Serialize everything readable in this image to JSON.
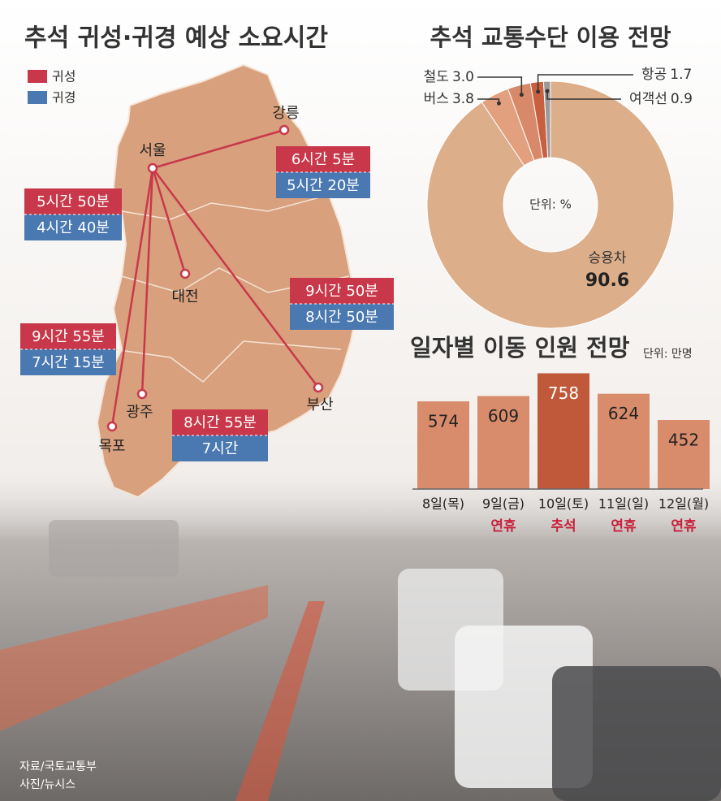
{
  "map": {
    "title": "추석 귀성·귀경 예상 소요시간",
    "legend": [
      {
        "name": "귀성",
        "color": "#c8384a"
      },
      {
        "name": "귀경",
        "color": "#4a78b0"
      }
    ],
    "cities": [
      {
        "name": "서울"
      },
      {
        "name": "강릉",
        "outbound": "6시간 5분",
        "return": "5시간 20분"
      },
      {
        "name": "대전",
        "outbound": "5시간 50분",
        "return": "4시간 40분"
      },
      {
        "name": "부산",
        "outbound": "9시간 50분",
        "return": "8시간 50분"
      },
      {
        "name": "목포",
        "outbound": "9시간 55분",
        "return": "7시간 15분"
      },
      {
        "name": "광주",
        "outbound": "8시간 55분",
        "return": "7시간"
      }
    ]
  },
  "chart_data": [
    {
      "type": "pie",
      "title": "추석 교통수단 이용 전망",
      "unit": "단위: %",
      "categories": [
        "승용차",
        "버스",
        "철도",
        "항공",
        "여객선"
      ],
      "values": [
        90.6,
        3.8,
        3.0,
        1.7,
        0.9
      ],
      "value_labels": [
        "90.6",
        "3.8",
        "3.0",
        "1.7",
        "0.9"
      ],
      "colors": [
        "#dcae8a",
        "#e2a07f",
        "#d8896a",
        "#c8603f",
        "#9a9a9a"
      ]
    },
    {
      "type": "bar",
      "title": "일자별 이동 인원 전망",
      "unit": "단위: 만명",
      "categories": [
        "8일(목)",
        "9일(금)",
        "10일(토)",
        "11일(일)",
        "12일(월)"
      ],
      "notes": [
        null,
        "연휴",
        "추석",
        "연휴",
        "연휴"
      ],
      "values": [
        574,
        609,
        758,
        624,
        452
      ],
      "colors": [
        "#d98c6c",
        "#d98c6c",
        "#c0593a",
        "#d98c6c",
        "#d98c6c"
      ]
    }
  ],
  "source": [
    "자료/국토교통부",
    "사진/뉴시스"
  ]
}
